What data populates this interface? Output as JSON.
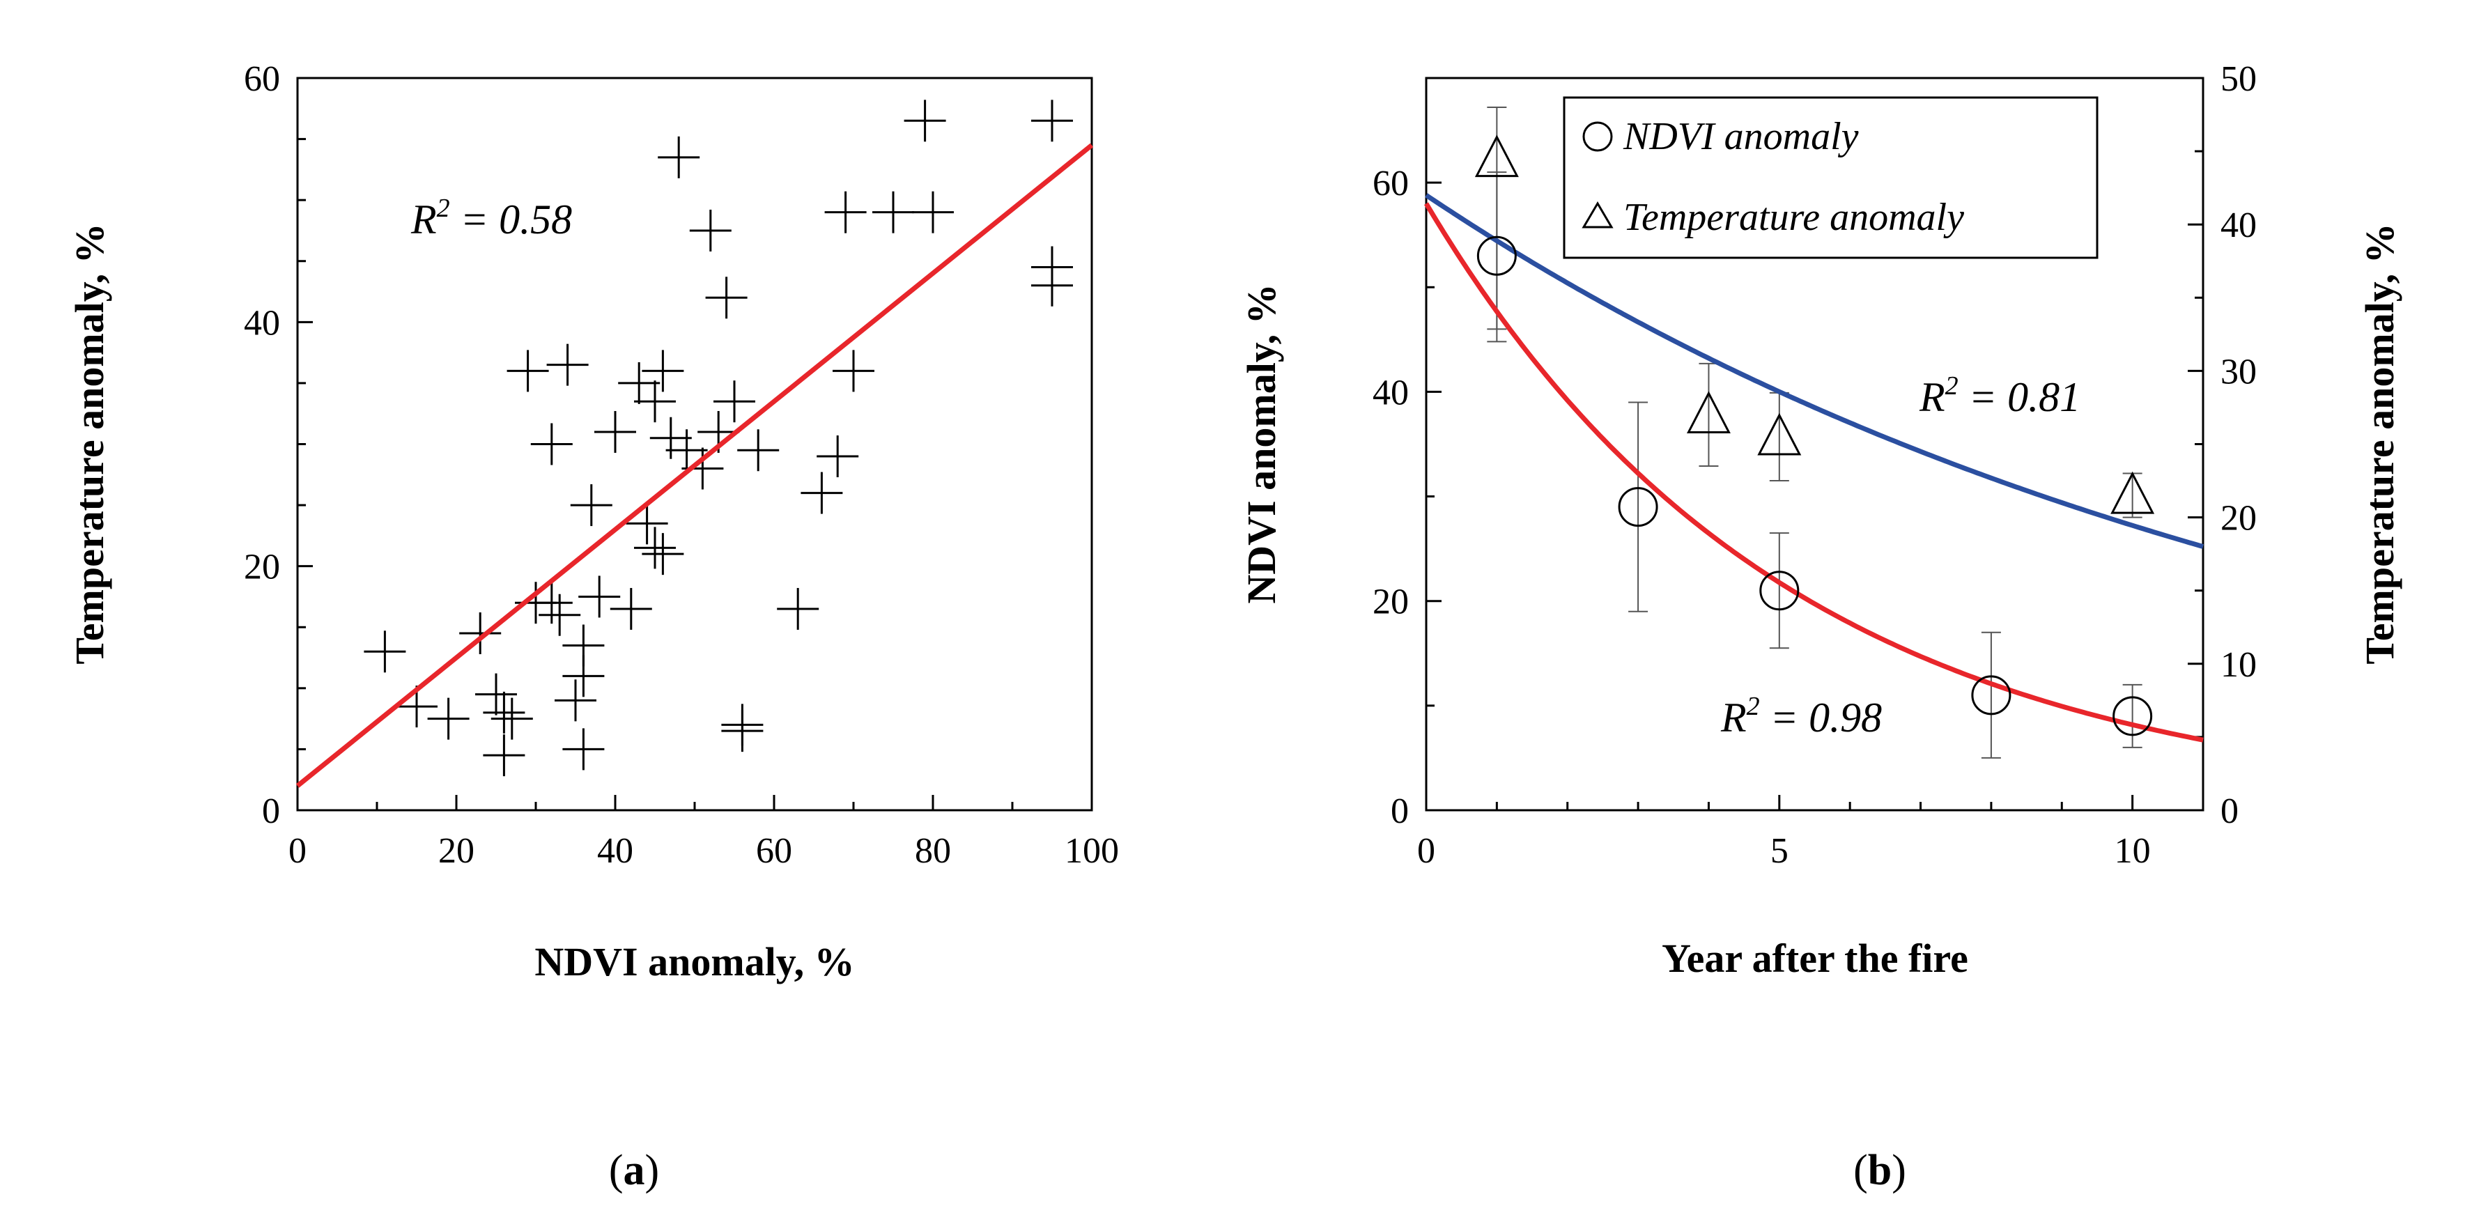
{
  "chart_data": [
    {
      "id": "a",
      "type": "scatter",
      "panel_label": "a",
      "xlabel": "NDVI anomaly, %",
      "ylabel": "Temperature anomaly, %",
      "xlim": [
        0,
        100
      ],
      "ylim": [
        0,
        60
      ],
      "xticks": [
        0,
        20,
        40,
        60,
        80,
        100
      ],
      "yticks": [
        0,
        20,
        40,
        60
      ],
      "annotation": "R² = 0.58",
      "fit": {
        "type": "linear",
        "intercept": 2,
        "slope": 0.525,
        "color": "#e8262b"
      },
      "marker_color": "#000000",
      "points": [
        [
          11,
          13
        ],
        [
          15,
          8.5
        ],
        [
          19,
          7.5
        ],
        [
          23,
          14.5
        ],
        [
          25,
          9.5
        ],
        [
          26,
          8
        ],
        [
          26,
          4.5
        ],
        [
          27,
          7.5
        ],
        [
          29,
          36
        ],
        [
          30,
          17
        ],
        [
          32,
          17
        ],
        [
          32,
          30
        ],
        [
          33,
          16
        ],
        [
          34,
          36.5
        ],
        [
          35,
          9
        ],
        [
          36,
          13.5
        ],
        [
          36,
          11
        ],
        [
          36,
          5
        ],
        [
          37,
          25
        ],
        [
          38,
          17.5
        ],
        [
          40,
          31
        ],
        [
          42,
          16.5
        ],
        [
          43,
          35
        ],
        [
          44,
          23.5
        ],
        [
          45,
          33.5
        ],
        [
          45,
          21.5
        ],
        [
          46,
          36
        ],
        [
          46,
          21
        ],
        [
          47,
          30.5
        ],
        [
          48,
          53.5
        ],
        [
          49,
          29.5
        ],
        [
          51,
          28
        ],
        [
          52,
          47.5
        ],
        [
          53,
          31
        ],
        [
          54,
          42
        ],
        [
          55,
          33.5
        ],
        [
          56,
          7
        ],
        [
          56,
          6.5
        ],
        [
          58,
          29.5
        ],
        [
          63,
          16.5
        ],
        [
          66,
          26
        ],
        [
          68,
          29
        ],
        [
          69,
          49
        ],
        [
          70,
          36
        ],
        [
          75,
          49
        ],
        [
          79,
          56.5
        ],
        [
          80,
          49
        ],
        [
          95,
          56.5
        ],
        [
          95,
          44.5
        ],
        [
          95,
          43
        ]
      ]
    },
    {
      "id": "b",
      "type": "scatter",
      "panel_label": "b",
      "xlabel": "Year after the fire",
      "ylabel": "NDVI anomaly, %",
      "ylabel_right": "Temperature anomaly, %",
      "xlim": [
        0,
        11
      ],
      "ylim": [
        0,
        70
      ],
      "ylim_right": [
        0,
        50
      ],
      "xticks": [
        0,
        5,
        10
      ],
      "yticks": [
        0,
        20,
        40,
        60
      ],
      "yticks_right": [
        0,
        10,
        20,
        30,
        40,
        50
      ],
      "legend": [
        "NDVI anomaly",
        "Temperature anomaly"
      ],
      "series": [
        {
          "name": "NDVI anomaly",
          "marker": "circle",
          "axis": "left",
          "x": [
            1,
            3,
            5,
            8,
            10
          ],
          "y": [
            53,
            29,
            21,
            11,
            9
          ],
          "err_low": [
            46,
            19,
            15.5,
            5,
            6
          ],
          "err_high": [
            61,
            39,
            26.5,
            17,
            12
          ]
        },
        {
          "name": "Temperature anomaly",
          "marker": "triangle",
          "axis": "right",
          "x": [
            1,
            4,
            5,
            10
          ],
          "y": [
            44.5,
            27,
            25.5,
            21.5
          ],
          "err_low": [
            32,
            23.5,
            22.5,
            20
          ],
          "err_high": [
            48,
            30.5,
            28.5,
            23
          ]
        }
      ],
      "fits": [
        {
          "name": "NDVI fit",
          "axis": "left",
          "type": "exponential",
          "a": 58,
          "b": 0.196,
          "color": "#e8262b",
          "label": "R² = 0.98"
        },
        {
          "name": "Temperature fit",
          "axis": "right",
          "type": "exponential",
          "a": 42,
          "b": 0.077,
          "color": "#2b4fa0",
          "label": "R² = 0.81"
        }
      ]
    }
  ]
}
